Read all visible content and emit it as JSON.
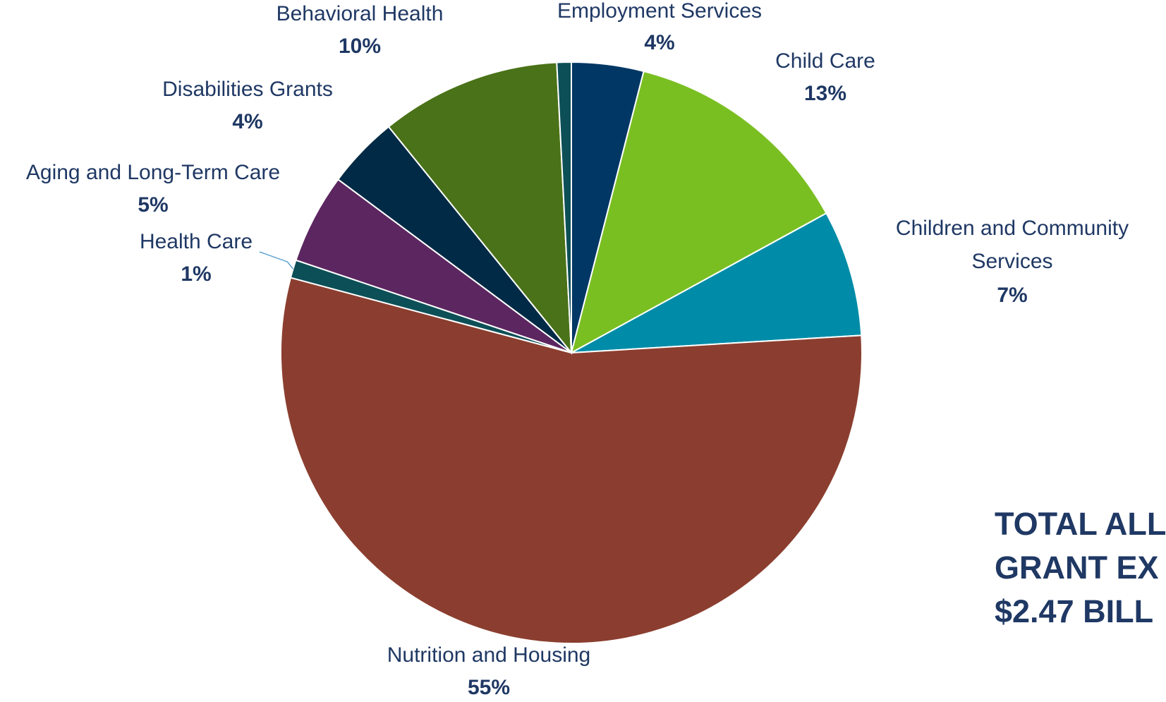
{
  "chart_data": {
    "type": "pie",
    "title": "",
    "slices": [
      {
        "label": "Employment Services",
        "value": 4,
        "value_label": "4%",
        "color": "#003764"
      },
      {
        "label": "Child Care",
        "value": 13,
        "value_label": "13%",
        "color": "#7ABF22"
      },
      {
        "label": "Children and Community Services",
        "label_lines": [
          "Children and Community",
          "Services"
        ],
        "value": 7,
        "value_label": "7%",
        "color": "#008CA8"
      },
      {
        "label": "Nutrition and Housing",
        "value": 55,
        "value_label": "55%",
        "color": "#8B3E2F"
      },
      {
        "label": "Health Care",
        "value": 1,
        "value_label": "1%",
        "color": "#0D4F57"
      },
      {
        "label": "Aging and Long-Term Care",
        "value": 5,
        "value_label": "5%",
        "color": "#5C2660"
      },
      {
        "label": "Disabilities Grants",
        "value": 4,
        "value_label": "4%",
        "color": "#002A45"
      },
      {
        "label": "Behavioral Health",
        "value": 10,
        "value_label": "10%",
        "color": "#4A7218"
      },
      {
        "label": "",
        "value": 0.8,
        "value_label": "",
        "color": "#0D4F57"
      }
    ],
    "legend": "none"
  },
  "total": {
    "lines": [
      "TOTAL ALL",
      "GRANT EX",
      "$2.47 BILL"
    ]
  },
  "colors": {
    "label_text": "#1f3864",
    "slice_border": "#ffffff",
    "leader_line": "#5BA3D0"
  }
}
